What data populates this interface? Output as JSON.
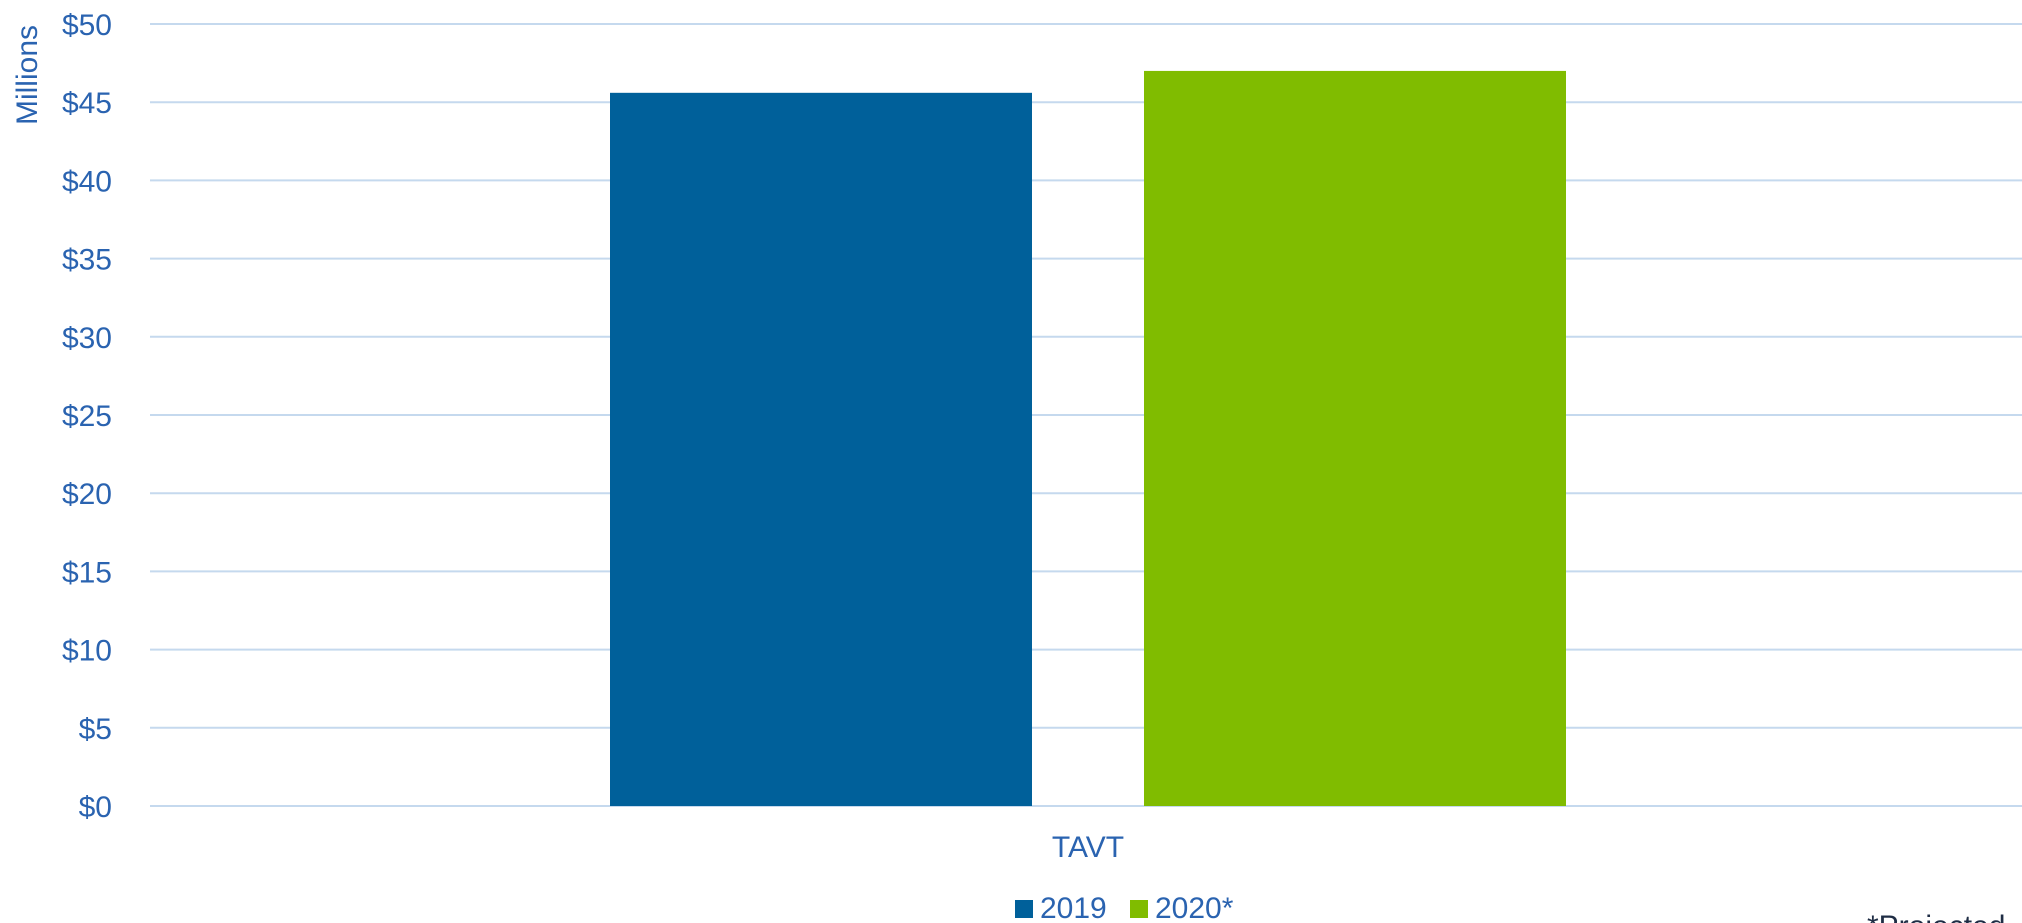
{
  "chart_data": {
    "type": "bar",
    "categories": [
      "TAVT"
    ],
    "series": [
      {
        "name": "2019",
        "values": [
          45.6
        ],
        "color": "#00609a"
      },
      {
        "name": "2020*",
        "values": [
          47.0
        ],
        "color": "#80bc00"
      }
    ],
    "ylabel": "Millions",
    "xlabel": "",
    "ylim": [
      0,
      50
    ],
    "yticks": [
      0,
      5,
      10,
      15,
      20,
      25,
      30,
      35,
      40,
      45,
      50
    ],
    "ytick_labels": [
      "$0",
      "$5",
      "$10",
      "$15",
      "$20",
      "$25",
      "$30",
      "$35",
      "$40",
      "$45",
      "$50"
    ],
    "grid": true,
    "legend_position": "bottom-center",
    "footnote": "*Projected"
  },
  "colors": {
    "text": "#2a63b0",
    "gridline": "#c5d9ee",
    "footnote_text": "#1f2d45"
  }
}
